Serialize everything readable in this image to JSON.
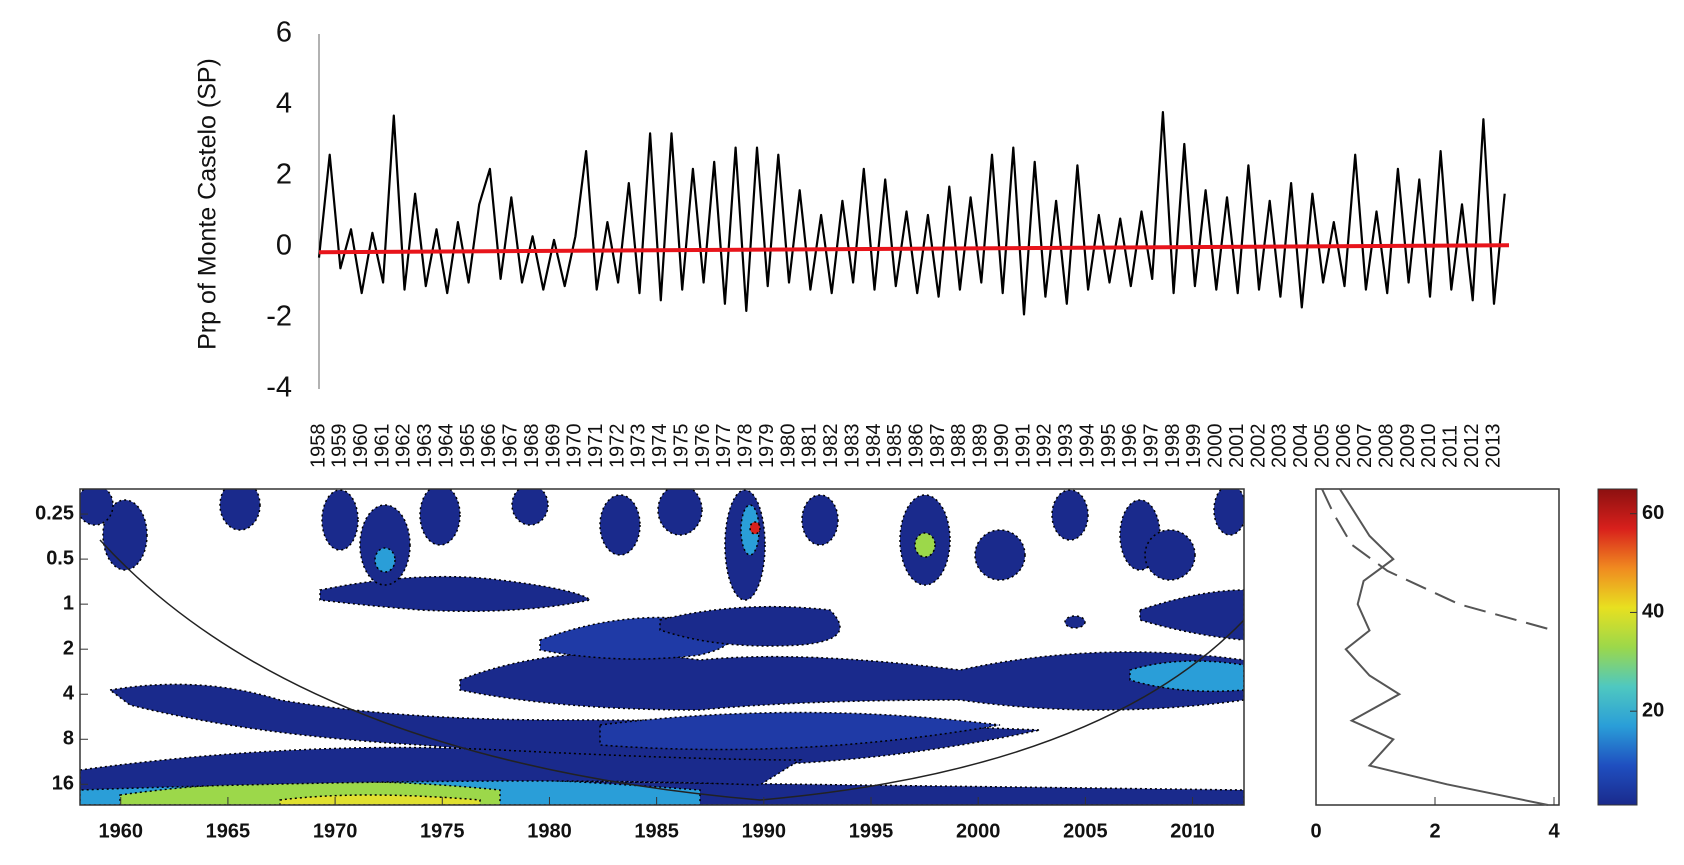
{
  "chart_data": [
    {
      "type": "line",
      "ylabel": "Prp of  Monte Castelo (SP)",
      "xlim": [
        1958,
        2013.7
      ],
      "ylim": [
        -4,
        6
      ],
      "yticks": [
        -4,
        -2,
        0,
        2,
        4,
        6
      ],
      "xticks": [
        1958,
        1959,
        1960,
        1961,
        1962,
        1963,
        1964,
        1965,
        1966,
        1967,
        1968,
        1969,
        1970,
        1971,
        1972,
        1973,
        1974,
        1975,
        1976,
        1977,
        1978,
        1979,
        1980,
        1981,
        1982,
        1983,
        1984,
        1985,
        1986,
        1987,
        1988,
        1989,
        1990,
        1991,
        1992,
        1993,
        1994,
        1995,
        1996,
        1997,
        1998,
        1999,
        2000,
        2001,
        2002,
        2003,
        2004,
        2005,
        2006,
        2007,
        2008,
        2009,
        2010,
        2011,
        2012,
        2013
      ],
      "x": [
        1958,
        1958.5,
        1959,
        1959.5,
        1960,
        1960.5,
        1961,
        1961.5,
        1962,
        1962.5,
        1963,
        1963.5,
        1964,
        1964.5,
        1965,
        1965.5,
        1966,
        1966.5,
        1967,
        1967.5,
        1968,
        1968.5,
        1969,
        1969.5,
        1970,
        1970.5,
        1971,
        1971.5,
        1972,
        1972.5,
        1973,
        1973.5,
        1974,
        1974.5,
        1975,
        1975.5,
        1976,
        1976.5,
        1977,
        1977.5,
        1978,
        1978.5,
        1979,
        1979.5,
        1980,
        1980.5,
        1981,
        1981.5,
        1982,
        1982.5,
        1983,
        1983.5,
        1984,
        1984.5,
        1985,
        1985.5,
        1986,
        1986.5,
        1987,
        1987.5,
        1988,
        1988.5,
        1989,
        1989.5,
        1990,
        1990.5,
        1991,
        1991.5,
        1992,
        1992.5,
        1993,
        1993.5,
        1994,
        1994.5,
        1995,
        1995.5,
        1996,
        1996.5,
        1997,
        1997.5,
        1998,
        1998.5,
        1999,
        1999.5,
        2000,
        2000.5,
        2001,
        2001.5,
        2002,
        2002.5,
        2003,
        2003.5,
        2004,
        2004.5,
        2005,
        2005.5,
        2006,
        2006.5,
        2007,
        2007.5,
        2008,
        2008.5,
        2009,
        2009.5,
        2010,
        2010.5,
        2011,
        2011.5,
        2012,
        2012.5,
        2013,
        2013.5
      ],
      "series": [
        {
          "color": "#000000",
          "values": [
            -0.3,
            2.6,
            -0.6,
            0.5,
            -1.3,
            0.4,
            -1.0,
            3.7,
            -1.2,
            1.5,
            -1.1,
            0.5,
            -1.3,
            0.7,
            -1.0,
            1.2,
            2.2,
            -0.9,
            1.4,
            -1.0,
            0.3,
            -1.2,
            0.2,
            -1.1,
            0.3,
            2.7,
            -1.2,
            0.7,
            -1.0,
            1.8,
            -1.3,
            3.2,
            -1.5,
            3.2,
            -1.2,
            2.2,
            -1.0,
            2.4,
            -1.6,
            2.8,
            -1.8,
            2.8,
            -1.1,
            2.6,
            -1.0,
            1.6,
            -1.2,
            0.9,
            -1.3,
            1.3,
            -1.0,
            2.2,
            -1.2,
            1.9,
            -1.1,
            1.0,
            -1.3,
            0.9,
            -1.4,
            1.7,
            -1.2,
            1.4,
            -1.0,
            2.6,
            -1.3,
            2.8,
            -1.9,
            2.4,
            -1.4,
            1.3,
            -1.6,
            2.3,
            -1.2,
            0.9,
            -1.0,
            0.8,
            -1.1,
            1.0,
            -0.9,
            3.8,
            -1.3,
            2.9,
            -1.1,
            1.6,
            -1.2,
            1.4,
            -1.3,
            2.3,
            -1.2,
            1.3,
            -1.4,
            1.8,
            -1.7,
            1.5,
            -1.0,
            0.7,
            -1.1,
            2.6,
            -1.2,
            1.0,
            -1.3,
            2.2,
            -1.0,
            1.9,
            -1.4,
            2.7,
            -1.2,
            1.2,
            -1.5,
            3.6,
            -1.6,
            1.5
          ]
        }
      ],
      "trend": {
        "color": "#e8141b",
        "x": [
          1958,
          2013.7
        ],
        "values": [
          -0.15,
          0.05
        ]
      }
    },
    {
      "type": "wavelet",
      "xlim": [
        1958.1,
        2012.4
      ],
      "ylim": [
        0.17,
        22
      ],
      "log_y": true,
      "y_inverted": true,
      "xticks": [
        1960,
        1965,
        1970,
        1975,
        1980,
        1985,
        1990,
        1995,
        2000,
        2005,
        2010
      ],
      "yticks": [
        0.25,
        0.5,
        1,
        2,
        4,
        8,
        16
      ]
    },
    {
      "type": "spectrum",
      "xlim": [
        0,
        4
      ],
      "ylim": [
        0.17,
        22
      ],
      "log_y": true,
      "y_inverted": true,
      "xticks": [
        0,
        2,
        4
      ],
      "series": [
        {
          "color": "#555555",
          "dash": false,
          "periods": [
            0.17,
            0.35,
            0.5,
            0.7,
            1,
            1.5,
            2,
            3,
            4,
            6,
            8,
            12,
            16,
            22
          ],
          "values": [
            0.4,
            0.9,
            1.3,
            0.8,
            0.7,
            0.9,
            0.5,
            0.9,
            1.4,
            0.6,
            1.3,
            0.9,
            2.2,
            3.9
          ]
        },
        {
          "color": "#555555",
          "dash": true,
          "periods": [
            0.17,
            0.25,
            0.4,
            0.6,
            1,
            1.5
          ],
          "values": [
            0.1,
            0.3,
            0.6,
            1.2,
            2.4,
            4
          ]
        }
      ]
    },
    {
      "type": "colorbar",
      "ylim": [
        1,
        65
      ],
      "yticks": [
        20,
        40,
        60
      ],
      "colors": [
        "#1a2a8c",
        "#1f4fc0",
        "#2a9ed8",
        "#4fc8c0",
        "#9cd84a",
        "#e8e020",
        "#f08a20",
        "#d8201c",
        "#8c1010"
      ]
    }
  ]
}
